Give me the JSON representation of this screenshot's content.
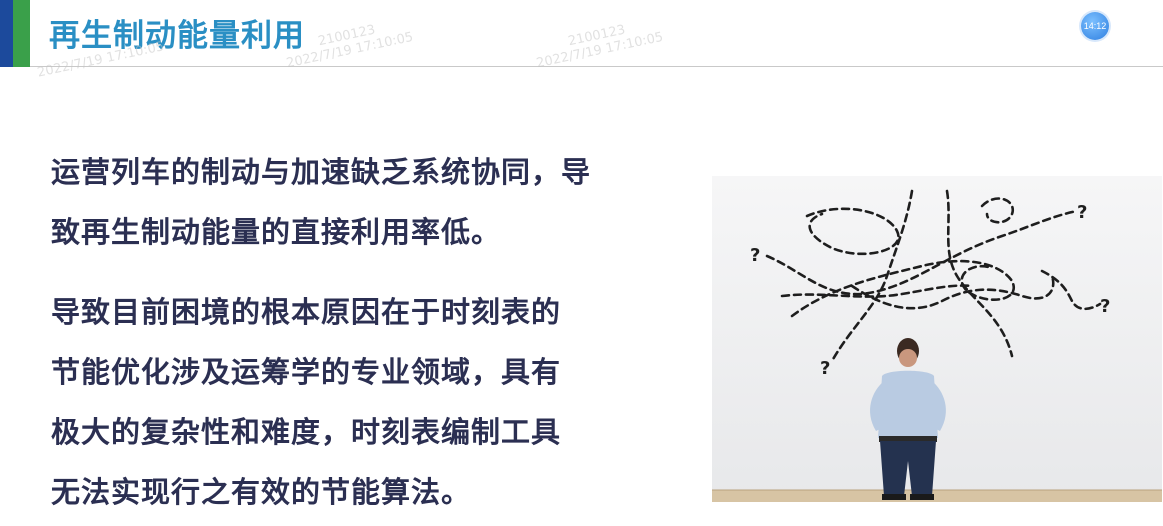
{
  "header": {
    "title": "再生制动能量利用",
    "timer": "14:12"
  },
  "watermarks": [
    {
      "line1": "",
      "line2": "2022/7/19 17:10:05"
    },
    {
      "line1": "2100123",
      "line2": "2022/7/19 17:10:05"
    },
    {
      "line1": "2100123",
      "line2": "2022/7/19 17:10:05"
    }
  ],
  "content": {
    "paragraph1_line1": "运营列车的制动与加速缺乏系统协同，导",
    "paragraph1_line2": "致再生制动能量的直接利用率低。",
    "paragraph2_line1": "导致目前困境的根本原因在于时刻表的",
    "paragraph2_line2": "节能优化涉及运筹学的专业领域，具有",
    "paragraph2_line3": "极大的复杂性和难度，时刻表编制工具",
    "paragraph2_line4": "无法实现行之有效的节能算法。"
  },
  "illustration": {
    "question_mark": "?"
  },
  "colors": {
    "accent_blue": "#1c4a9c",
    "accent_green": "#3aa04a",
    "title_blue": "#2a8fc4",
    "body_text": "#2b2f52"
  }
}
